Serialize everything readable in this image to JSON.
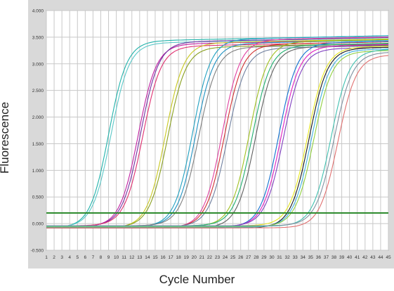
{
  "chart_data": {
    "type": "line",
    "title": "",
    "xlabel": "Cycle Number",
    "ylabel": "Fluorescence",
    "xlim": [
      1,
      45
    ],
    "ylim": [
      -0.5,
      4.0
    ],
    "x_ticks": [
      "1",
      "2",
      "3",
      "4",
      "5",
      "6",
      "7",
      "8",
      "9",
      "10",
      "11",
      "12",
      "13",
      "14",
      "15",
      "16",
      "17",
      "18",
      "19",
      "20",
      "21",
      "22",
      "23",
      "24",
      "25",
      "26",
      "27",
      "28",
      "29",
      "30",
      "31",
      "32",
      "33",
      "34",
      "35",
      "36",
      "37",
      "38",
      "39",
      "40",
      "41",
      "42",
      "43",
      "44",
      "45"
    ],
    "y_ticks": [
      "-0.500",
      "0.000",
      "0.500",
      "1.000",
      "1.500",
      "2.000",
      "2.500",
      "3.000",
      "3.500",
      "4.000"
    ],
    "grid": true,
    "threshold": 0.2,
    "threshold_color": "#2e8b2e",
    "series": [
      {
        "color": "#20b2aa",
        "midpoint": 9.0,
        "plateau": 3.42
      },
      {
        "color": "#5cc8c8",
        "midpoint": 9.3,
        "plateau": 3.38
      },
      {
        "color": "#c020a0",
        "midpoint": 12.8,
        "plateau": 3.36
      },
      {
        "color": "#7030a0",
        "midpoint": 13.1,
        "plateau": 3.4
      },
      {
        "color": "#e03070",
        "midpoint": 13.4,
        "plateau": 3.32
      },
      {
        "color": "#c8c820",
        "midpoint": 16.3,
        "plateau": 3.38
      },
      {
        "color": "#8aa020",
        "midpoint": 16.6,
        "plateau": 3.3
      },
      {
        "color": "#20a0c0",
        "midpoint": 19.8,
        "plateau": 3.45
      },
      {
        "color": "#1e90c0",
        "midpoint": 20.2,
        "plateau": 3.37
      },
      {
        "color": "#808080",
        "midpoint": 20.6,
        "plateau": 3.3
      },
      {
        "color": "#e040a0",
        "midpoint": 23.6,
        "plateau": 3.44
      },
      {
        "color": "#d03030",
        "midpoint": 23.9,
        "plateau": 3.35
      },
      {
        "color": "#7080a0",
        "midpoint": 24.3,
        "plateau": 3.28
      },
      {
        "color": "#a0c020",
        "midpoint": 27.1,
        "plateau": 3.4
      },
      {
        "color": "#20b070",
        "midpoint": 27.5,
        "plateau": 3.33
      },
      {
        "color": "#606060",
        "midpoint": 27.9,
        "plateau": 3.3
      },
      {
        "color": "#1070d0",
        "midpoint": 30.9,
        "plateau": 3.38
      },
      {
        "color": "#e020c0",
        "midpoint": 31.2,
        "plateau": 3.32
      },
      {
        "color": "#8040c0",
        "midpoint": 31.5,
        "plateau": 3.27
      },
      {
        "color": "#e8e820",
        "midpoint": 34.6,
        "plateau": 3.3
      },
      {
        "color": "#1a1a1a",
        "midpoint": 34.8,
        "plateau": 3.28
      },
      {
        "color": "#40b0e0",
        "midpoint": 35.1,
        "plateau": 3.25
      },
      {
        "color": "#90d040",
        "midpoint": 35.4,
        "plateau": 3.22
      },
      {
        "color": "#40c0b0",
        "midpoint": 37.6,
        "plateau": 3.25
      },
      {
        "color": "#8090a0",
        "midpoint": 38.0,
        "plateau": 3.2
      },
      {
        "color": "#e07070",
        "midpoint": 38.5,
        "plateau": 3.15
      }
    ]
  }
}
